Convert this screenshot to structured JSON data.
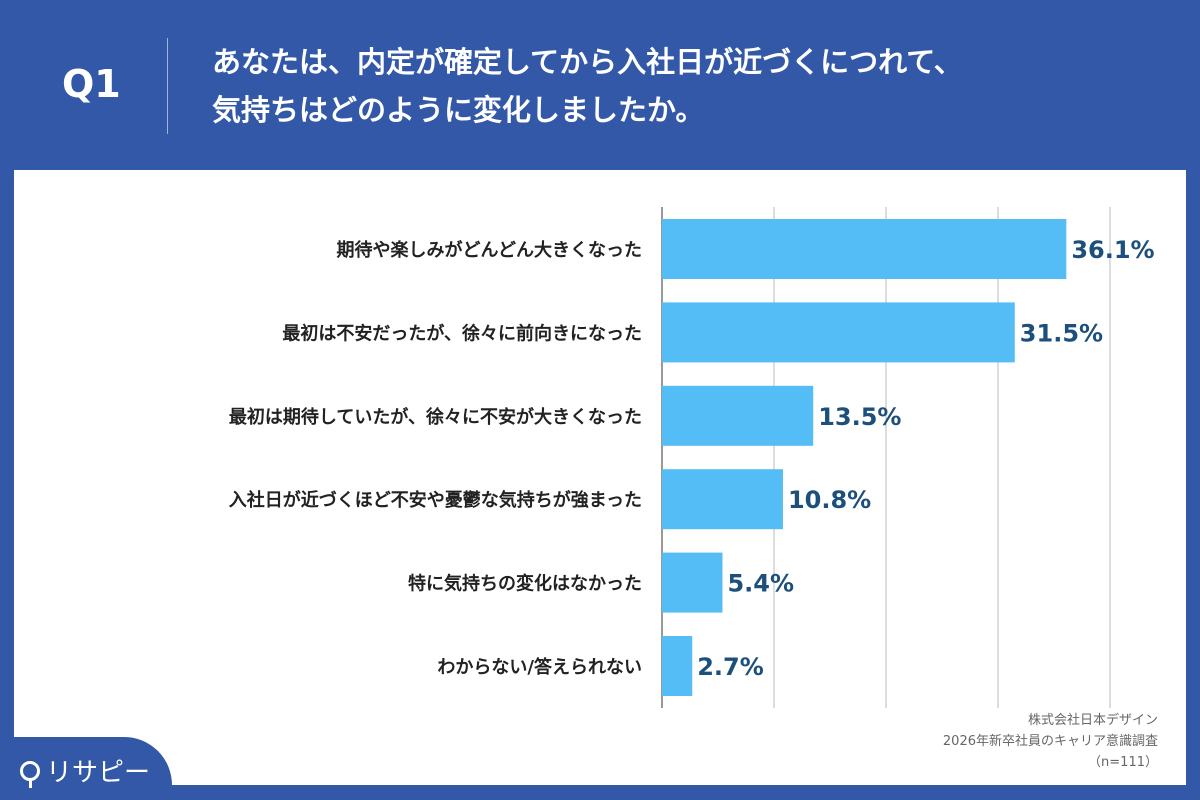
{
  "header": {
    "question_no": "Q1",
    "title_line1": "あなたは、内定が確定してから入社日が近づくにつれて、",
    "title_line2": "気持ちはどのように変化しましたか。"
  },
  "colors": {
    "background": "#3358a8",
    "bar": "#55bdf5",
    "value_label": "#1d4f7c"
  },
  "chart_data": {
    "type": "bar",
    "orientation": "horizontal",
    "categories": [
      "期待や楽しみがどんどん大きくなった",
      "最初は不安だったが、徐々に前向きになった",
      "最初は期待していたが、徐々に不安が大きくなった",
      "入社日が近づくほど不安や憂鬱な気持ちが強まった",
      "特に気持ちの変化はなかった",
      "わからない/答えられない"
    ],
    "values": [
      36.1,
      31.5,
      13.5,
      10.8,
      5.4,
      2.7
    ],
    "value_labels": [
      "36.1%",
      "31.5%",
      "13.5%",
      "10.8%",
      "5.4%",
      "2.7%"
    ],
    "xlim": [
      0,
      40
    ],
    "grid": true,
    "unit": "%"
  },
  "footer": {
    "source_line1": "株式会社日本デザイン",
    "source_line2": "2026年新卒社員のキャリア意識調査",
    "sample": "（n=111）",
    "logo_text": "リサピー"
  }
}
